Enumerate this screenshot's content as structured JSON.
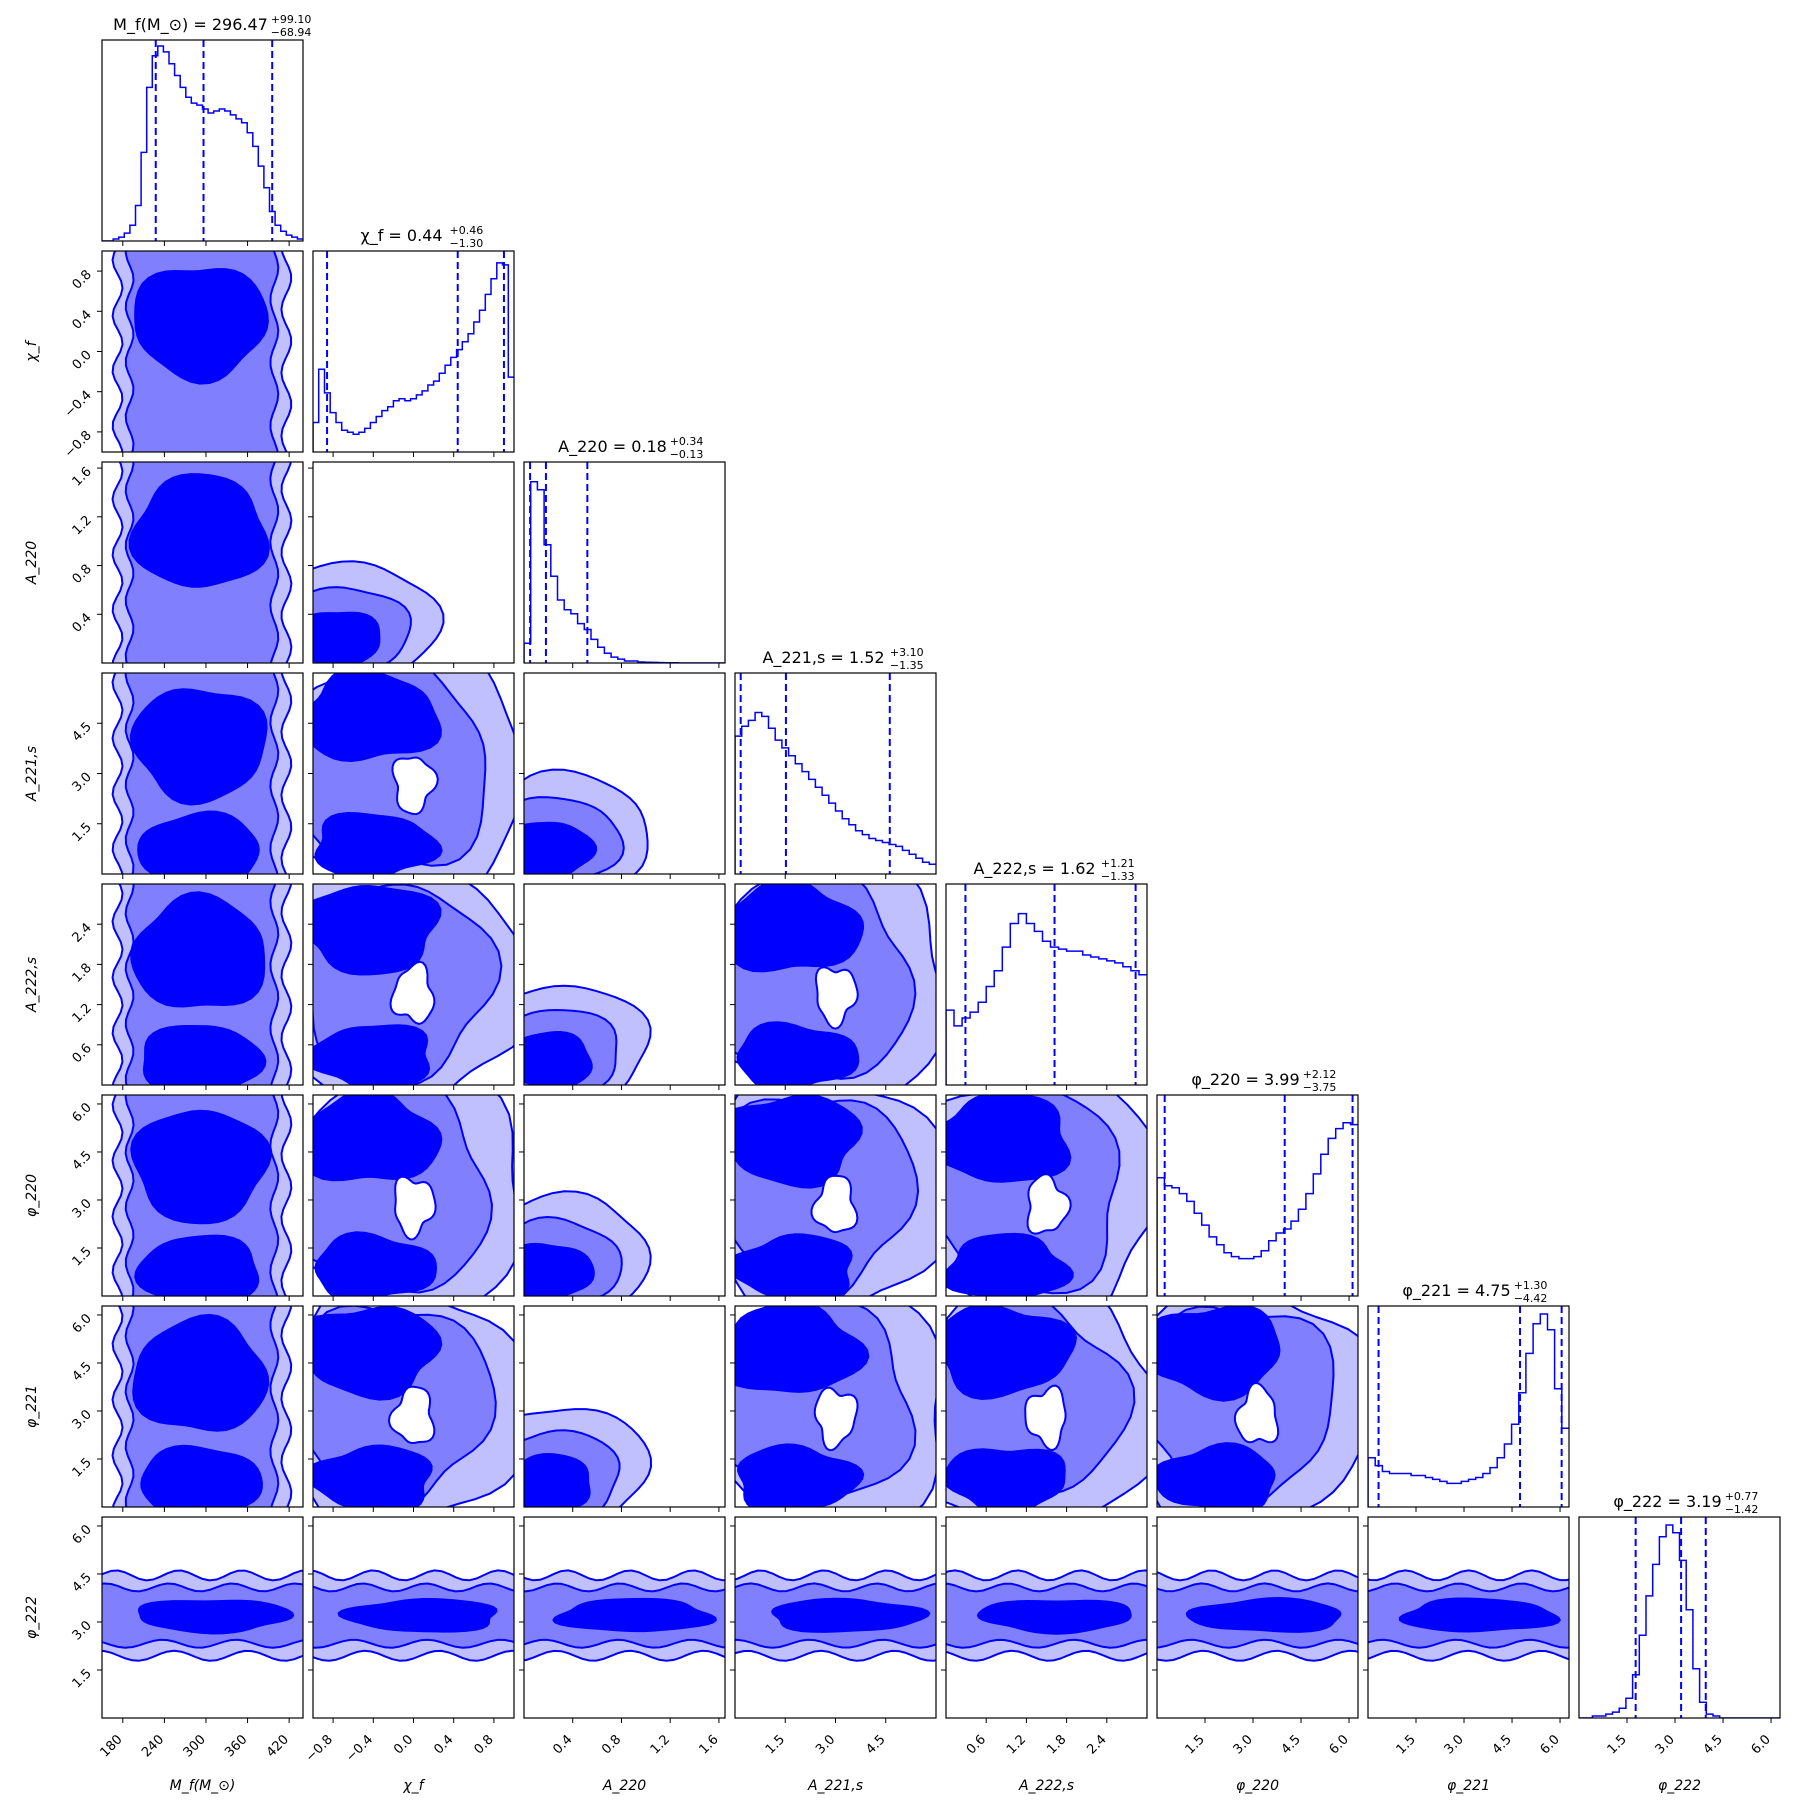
{
  "chart_data": {
    "type": "corner",
    "colors": {
      "contour_dark": "#0000ff",
      "contour_mid": "#8080ff",
      "contour_light": "#c0c0ff",
      "line": "#0000ff",
      "frame": "#000000"
    },
    "params": [
      {
        "key": "Mf",
        "label": "M_f(M_⊙)",
        "title_main": "M_f(M_⊙) = 296.47",
        "title_sup": "+99.10",
        "title_sub": "−68.94",
        "range": [
          150,
          440
        ],
        "ticks": [
          180,
          240,
          300,
          360,
          420
        ],
        "tick_labels": [
          "180",
          "240",
          "300",
          "360",
          "420"
        ],
        "quantiles": [
          227.53,
          296.47,
          395.57
        ]
      },
      {
        "key": "chi",
        "label": "χ_f",
        "title_main": "χ_f = 0.44",
        "title_sup": "+0.46",
        "title_sub": "−1.30",
        "range": [
          -1.0,
          1.0
        ],
        "ticks": [
          -0.8,
          -0.4,
          0.0,
          0.4,
          0.8
        ],
        "tick_labels": [
          "−0.8",
          "−0.4",
          "0.0",
          "0.4",
          "0.8"
        ],
        "quantiles": [
          -0.86,
          0.44,
          0.9
        ]
      },
      {
        "key": "A220",
        "label": "A_220",
        "title_main": "A_220 = 0.18",
        "title_sup": "+0.34",
        "title_sub": "−0.13",
        "range": [
          0.0,
          1.65
        ],
        "ticks": [
          0.4,
          0.8,
          1.2,
          1.6
        ],
        "tick_labels": [
          "0.4",
          "0.8",
          "1.2",
          "1.6"
        ],
        "quantiles": [
          0.05,
          0.18,
          0.52
        ]
      },
      {
        "key": "A221",
        "label": "A_221,s",
        "title_main": "A_221,s = 1.52",
        "title_sup": "+3.10",
        "title_sub": "−1.35",
        "range": [
          0.0,
          6.0
        ],
        "ticks": [
          1.5,
          3.0,
          4.5
        ],
        "tick_labels": [
          "1.5",
          "3.0",
          "4.5"
        ],
        "quantiles": [
          0.17,
          1.52,
          4.62
        ]
      },
      {
        "key": "A222",
        "label": "A_222,s",
        "title_main": "A_222,s = 1.62",
        "title_sup": "+1.21",
        "title_sub": "−1.33",
        "range": [
          0.0,
          3.0
        ],
        "ticks": [
          0.6,
          1.2,
          1.8,
          2.4
        ],
        "tick_labels": [
          "0.6",
          "1.2",
          "1.8",
          "2.4"
        ],
        "quantiles": [
          0.29,
          1.62,
          2.83
        ]
      },
      {
        "key": "phi220",
        "label": "φ_220",
        "title_main": "φ_220 = 3.99",
        "title_sup": "+2.12",
        "title_sub": "−3.75",
        "range": [
          0.0,
          6.28
        ],
        "ticks": [
          1.5,
          3.0,
          4.5,
          6.0
        ],
        "tick_labels": [
          "1.5",
          "3.0",
          "4.5",
          "6.0"
        ],
        "quantiles": [
          0.24,
          3.99,
          6.11
        ]
      },
      {
        "key": "phi221",
        "label": "φ_221",
        "title_main": "φ_221 = 4.75",
        "title_sup": "+1.30",
        "title_sub": "−4.42",
        "range": [
          0.0,
          6.28
        ],
        "ticks": [
          1.5,
          3.0,
          4.5,
          6.0
        ],
        "tick_labels": [
          "1.5",
          "3.0",
          "4.5",
          "6.0"
        ],
        "quantiles": [
          0.33,
          4.75,
          6.05
        ]
      },
      {
        "key": "phi222",
        "label": "φ_222",
        "title_main": "φ_222 = 3.19",
        "title_sup": "+0.77",
        "title_sub": "−1.42",
        "range": [
          0.0,
          6.28
        ],
        "ticks": [
          1.5,
          3.0,
          4.5,
          6.0
        ],
        "tick_labels": [
          "1.5",
          "3.0",
          "4.5",
          "6.0"
        ],
        "quantiles": [
          1.77,
          3.19,
          3.96
        ]
      }
    ],
    "histograms": {
      "Mf": [
        0.0,
        0.0,
        0.01,
        0.02,
        0.04,
        0.08,
        0.18,
        0.45,
        0.78,
        0.94,
        0.99,
        0.96,
        0.9,
        0.84,
        0.78,
        0.73,
        0.7,
        0.69,
        0.67,
        0.65,
        0.66,
        0.67,
        0.66,
        0.64,
        0.62,
        0.6,
        0.55,
        0.48,
        0.38,
        0.27,
        0.15,
        0.08,
        0.05,
        0.03,
        0.02,
        0.01
      ],
      "chi": [
        0.15,
        0.42,
        0.3,
        0.2,
        0.15,
        0.11,
        0.1,
        0.09,
        0.1,
        0.12,
        0.15,
        0.18,
        0.21,
        0.23,
        0.26,
        0.27,
        0.26,
        0.27,
        0.29,
        0.31,
        0.34,
        0.36,
        0.4,
        0.44,
        0.48,
        0.52,
        0.56,
        0.6,
        0.66,
        0.72,
        0.8,
        0.88,
        0.96,
        0.95,
        0.38
      ],
      "A220": [
        0.1,
        0.92,
        0.88,
        0.6,
        0.44,
        0.32,
        0.27,
        0.25,
        0.2,
        0.17,
        0.12,
        0.08,
        0.05,
        0.03,
        0.02,
        0.01,
        0.01,
        0.005,
        0.004,
        0.003,
        0.002,
        0.001,
        0.001,
        0.0,
        0.0,
        0.0,
        0.0,
        0.0,
        0.0,
        0.0
      ],
      "A221": [
        0.7,
        0.75,
        0.78,
        0.82,
        0.8,
        0.74,
        0.68,
        0.64,
        0.6,
        0.56,
        0.52,
        0.48,
        0.44,
        0.4,
        0.36,
        0.32,
        0.28,
        0.25,
        0.22,
        0.2,
        0.18,
        0.17,
        0.16,
        0.15,
        0.14,
        0.12,
        0.1,
        0.08,
        0.06,
        0.05
      ],
      "A222": [
        0.38,
        0.3,
        0.34,
        0.37,
        0.42,
        0.5,
        0.58,
        0.7,
        0.82,
        0.87,
        0.82,
        0.78,
        0.73,
        0.7,
        0.69,
        0.68,
        0.68,
        0.66,
        0.65,
        0.64,
        0.63,
        0.62,
        0.6,
        0.58,
        0.56
      ],
      "phi220": [
        0.6,
        0.56,
        0.55,
        0.52,
        0.48,
        0.42,
        0.36,
        0.3,
        0.26,
        0.22,
        0.2,
        0.19,
        0.19,
        0.2,
        0.23,
        0.28,
        0.32,
        0.34,
        0.38,
        0.44,
        0.52,
        0.62,
        0.72,
        0.8,
        0.85,
        0.88,
        0.87
      ],
      "phi221": [
        0.25,
        0.21,
        0.18,
        0.17,
        0.17,
        0.17,
        0.16,
        0.16,
        0.15,
        0.14,
        0.13,
        0.12,
        0.12,
        0.13,
        0.14,
        0.15,
        0.17,
        0.2,
        0.25,
        0.32,
        0.42,
        0.58,
        0.78,
        0.93,
        0.98,
        0.9,
        0.6,
        0.4
      ],
      "phi222": [
        0.0,
        0.0,
        0.01,
        0.01,
        0.02,
        0.03,
        0.05,
        0.1,
        0.22,
        0.42,
        0.62,
        0.78,
        0.92,
        0.98,
        0.94,
        0.8,
        0.55,
        0.25,
        0.08,
        0.02,
        0.01,
        0.0,
        0.0,
        0.0,
        0.0,
        0.0,
        0.0,
        0.0,
        0.0,
        0.0
      ]
    }
  }
}
